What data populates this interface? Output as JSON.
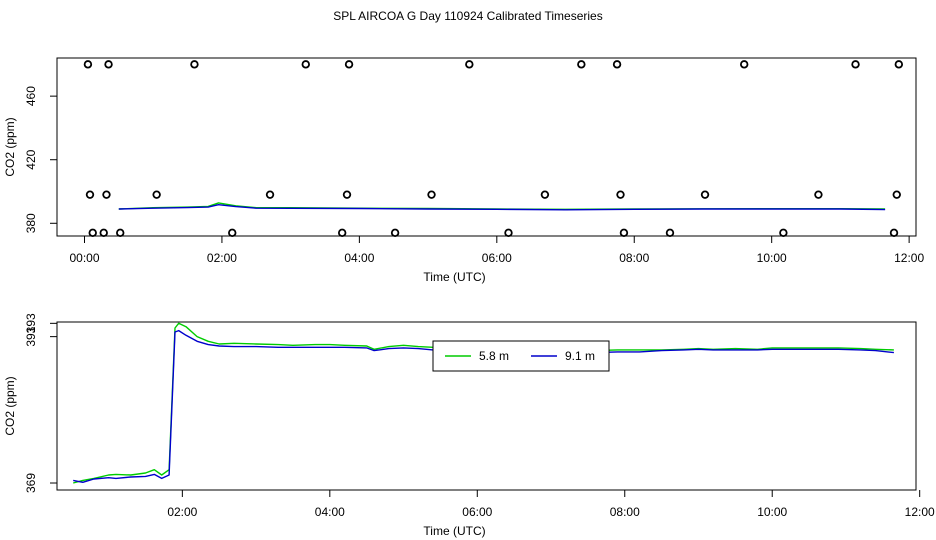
{
  "title": "SPL AIRCOA G  Day 110924  Calibrated Timeseries",
  "chart_data": [
    {
      "type": "line",
      "xlabel": "Time (UTC)",
      "ylabel": "CO2 (ppm)",
      "xlim": [
        -0.4,
        12.1
      ],
      "ylim": [
        372,
        484
      ],
      "x_ticks": [
        0,
        2,
        4,
        6,
        8,
        10,
        12
      ],
      "x_tick_labels": [
        "00:00",
        "02:00",
        "04:00",
        "06:00",
        "08:00",
        "10:00",
        "12:00"
      ],
      "y_ticks": [
        380,
        420,
        460
      ],
      "y_tick_labels": [
        "380",
        "420",
        "460"
      ],
      "standards": {
        "style": "open-circle",
        "x": [
          0.05,
          0.35,
          1.6,
          3.22,
          3.85,
          5.6,
          7.23,
          7.75,
          9.6,
          11.22,
          11.85,
          0.08,
          0.32,
          1.05,
          2.7,
          3.82,
          5.05,
          6.7,
          7.8,
          9.03,
          10.68,
          11.82,
          0.12,
          0.28,
          0.52,
          2.15,
          3.75,
          4.52,
          6.17,
          7.85,
          8.52,
          10.17,
          11.78
        ],
        "y": [
          480,
          480,
          480,
          480,
          480,
          480,
          480,
          480,
          480,
          480,
          480,
          398,
          398,
          398,
          398,
          398,
          398,
          398,
          398,
          398,
          398,
          398,
          374,
          374,
          374,
          374,
          374,
          374,
          374,
          374,
          374,
          374,
          374
        ]
      },
      "series": [
        {
          "name": "5.8 m",
          "color": "#00cc00",
          "x": [
            0.5,
            1.0,
            1.5,
            1.8,
            1.95,
            2.2,
            2.5,
            3.0,
            4.0,
            5.0,
            6.0,
            7.0,
            8.0,
            9.0,
            10.0,
            11.0,
            11.65
          ],
          "y": [
            389.0,
            389.8,
            390.2,
            390.6,
            392.8,
            391.0,
            389.8,
            389.8,
            389.5,
            389.3,
            389.0,
            388.8,
            389.0,
            389.1,
            389.2,
            389.2,
            389.0
          ]
        },
        {
          "name": "9.1 m",
          "color": "#0000cc",
          "x": [
            0.5,
            1.0,
            1.5,
            1.8,
            1.95,
            2.2,
            2.5,
            3.0,
            4.0,
            5.0,
            6.0,
            7.0,
            8.0,
            9.0,
            10.0,
            11.0,
            11.65
          ],
          "y": [
            389.0,
            389.5,
            389.9,
            390.2,
            391.7,
            390.5,
            389.5,
            389.4,
            389.3,
            389.0,
            388.8,
            388.5,
            388.8,
            389.0,
            389.0,
            389.0,
            388.6
          ]
        }
      ]
    },
    {
      "type": "line",
      "xlabel": "Time (UTC)",
      "ylabel": "CO2 (ppm)",
      "xlim": [
        0.3,
        11.95
      ],
      "ylim": [
        367.95,
        393.2
      ],
      "x_ticks": [
        2,
        4,
        6,
        8,
        10,
        12
      ],
      "x_tick_labels": [
        "02:00",
        "04:00",
        "06:00",
        "08:00",
        "10:00",
        "12:00"
      ],
      "y_ticks": [
        369,
        391,
        393
      ],
      "y_tick_labels": [
        "369",
        "391",
        "393"
      ],
      "legend": {
        "placement": "top-center",
        "entries": [
          "5.8 m",
          "9.1 m"
        ]
      },
      "series": [
        {
          "name": "5.8 m",
          "color": "#00cc00",
          "x": [
            0.52,
            0.65,
            0.8,
            1.0,
            1.1,
            1.3,
            1.5,
            1.62,
            1.72,
            1.82,
            1.9,
            1.95,
            2.05,
            2.2,
            2.35,
            2.5,
            2.7,
            3.0,
            3.3,
            3.5,
            3.8,
            4.0,
            4.2,
            4.5,
            4.6,
            4.8,
            5.0,
            5.2,
            5.4,
            5.7,
            5.9,
            6.2,
            6.5,
            6.8,
            7.0,
            7.3,
            7.6,
            7.9,
            8.2,
            8.5,
            8.8,
            9.0,
            9.2,
            9.5,
            9.8,
            10.0,
            10.3,
            10.6,
            10.9,
            11.2,
            11.4,
            11.65
          ],
          "y": [
            369.0,
            369.4,
            369.7,
            370.2,
            370.3,
            370.2,
            370.5,
            371.0,
            370.2,
            371.0,
            392.3,
            393.0,
            392.5,
            391.0,
            390.3,
            389.9,
            390.0,
            389.9,
            389.8,
            389.7,
            389.8,
            389.8,
            389.7,
            389.6,
            389.1,
            389.5,
            389.7,
            389.5,
            389.4,
            389.4,
            389.1,
            389.0,
            388.9,
            388.9,
            388.9,
            388.9,
            388.9,
            389.0,
            389.0,
            389.0,
            389.1,
            389.2,
            389.1,
            389.2,
            389.1,
            389.3,
            389.3,
            389.3,
            389.3,
            389.2,
            389.1,
            389.0
          ]
        },
        {
          "name": "9.1 m",
          "color": "#0000cc",
          "x": [
            0.52,
            0.65,
            0.8,
            1.0,
            1.1,
            1.3,
            1.5,
            1.62,
            1.72,
            1.82,
            1.9,
            1.95,
            2.05,
            2.2,
            2.35,
            2.5,
            2.7,
            3.0,
            3.3,
            3.5,
            3.8,
            4.0,
            4.2,
            4.5,
            4.6,
            4.8,
            5.0,
            5.2,
            5.4,
            5.7,
            5.9,
            6.2,
            6.5,
            6.8,
            7.0,
            7.3,
            7.6,
            7.9,
            8.2,
            8.5,
            8.8,
            9.0,
            9.2,
            9.5,
            9.8,
            10.0,
            10.3,
            10.6,
            10.9,
            11.2,
            11.4,
            11.65
          ],
          "y": [
            369.4,
            369.1,
            369.6,
            369.8,
            369.7,
            369.9,
            370.0,
            370.3,
            369.7,
            370.2,
            391.7,
            391.9,
            391.2,
            390.3,
            389.8,
            389.6,
            389.5,
            389.5,
            389.4,
            389.4,
            389.4,
            389.4,
            389.4,
            389.3,
            388.9,
            389.2,
            389.3,
            389.2,
            389.0,
            389.0,
            388.8,
            388.7,
            388.6,
            388.6,
            388.5,
            388.5,
            388.6,
            388.7,
            388.7,
            388.9,
            389.0,
            389.1,
            389.0,
            389.0,
            389.0,
            389.1,
            389.1,
            389.1,
            389.1,
            389.0,
            388.9,
            388.6
          ]
        }
      ]
    }
  ]
}
